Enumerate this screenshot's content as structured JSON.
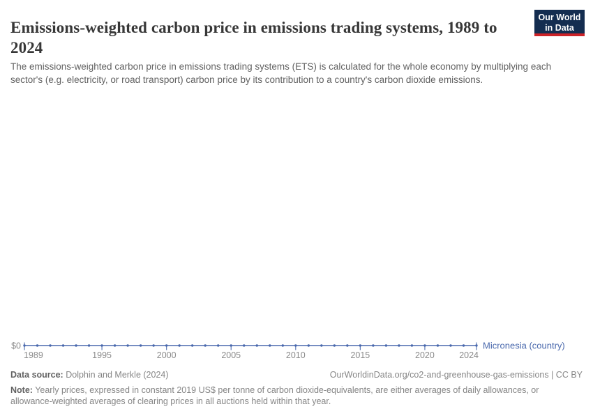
{
  "header": {
    "title": "Emissions-weighted carbon price in emissions trading systems, 1989 to 2024",
    "subtitle": "The emissions-weighted carbon price in emissions trading systems (ETS) is calculated for the whole economy by multiplying each sector's (e.g. electricity, or road transport) carbon price by its contribution to a country's carbon dioxide emissions.",
    "logo": {
      "line1": "Our World",
      "line2": "in Data"
    }
  },
  "colors": {
    "accent": "#4a69ad",
    "axis_label": "#8b8b8b",
    "title": "#373737",
    "subtitle": "#616161",
    "footer": "#858585",
    "footer_label": "#636363",
    "logo_bg": "#142d50",
    "logo_bar": "#cd2328"
  },
  "chart_data": {
    "type": "line",
    "title": "Emissions-weighted carbon price in emissions trading systems, 1989 to 2024",
    "xlabel": "",
    "ylabel": "",
    "unit": "US$ per tonne of CO2-equivalents (constant 2019 US$)",
    "x": [
      1989,
      1990,
      1991,
      1992,
      1993,
      1994,
      1995,
      1996,
      1997,
      1998,
      1999,
      2000,
      2001,
      2002,
      2003,
      2004,
      2005,
      2006,
      2007,
      2008,
      2009,
      2010,
      2011,
      2012,
      2013,
      2014,
      2015,
      2016,
      2017,
      2018,
      2019,
      2020,
      2021,
      2022,
      2023,
      2024
    ],
    "series": [
      {
        "name": "Micronesia (country)",
        "values": [
          0,
          0,
          0,
          0,
          0,
          0,
          0,
          0,
          0,
          0,
          0,
          0,
          0,
          0,
          0,
          0,
          0,
          0,
          0,
          0,
          0,
          0,
          0,
          0,
          0,
          0,
          0,
          0,
          0,
          0,
          0,
          0,
          0,
          0,
          0,
          0
        ]
      }
    ],
    "x_ticks": [
      1989,
      1995,
      2000,
      2005,
      2010,
      2015,
      2020,
      2024
    ],
    "y_axis_label": "$0",
    "ylim": [
      0,
      0
    ],
    "grid": false,
    "legend_position": "right-of-line-end",
    "markers": true
  },
  "footer": {
    "data_source_label": "Data source:",
    "data_source": "Dolphin and Merkle (2024)",
    "attribution": "OurWorldinData.org/co2-and-greenhouse-gas-emissions | CC BY",
    "note_label": "Note:",
    "note": "Yearly prices, expressed in constant 2019 US$ per tonne of carbon dioxide-equivalents, are either averages of daily allowances, or allowance-weighted averages of clearing prices in all auctions held within that year."
  }
}
